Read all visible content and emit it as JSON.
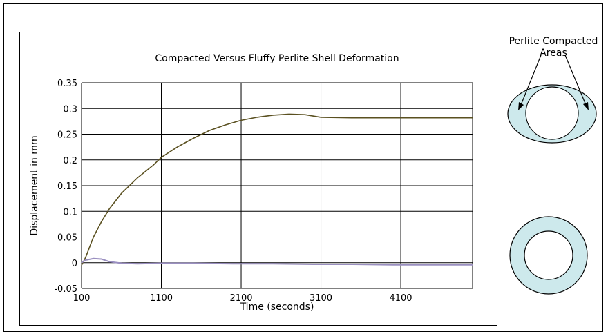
{
  "chart_data": {
    "type": "line",
    "title": "Compacted Versus Fluffy Perlite Shell Deformation",
    "xlabel": "Time (seconds)",
    "ylabel": "Displacement in mm",
    "xlim": [
      100,
      5000
    ],
    "ylim": [
      -0.05,
      0.35
    ],
    "x_ticks": [
      100,
      1100,
      2100,
      3100,
      4100
    ],
    "y_ticks": [
      -0.05,
      0,
      0.05,
      0.1,
      0.15,
      0.2,
      0.25,
      0.3,
      0.35
    ],
    "y_tick_labels": [
      "-0.05",
      "0",
      "0.05",
      "0.1",
      "0.15",
      "0.2",
      "0.25",
      "0.3",
      "0.35"
    ],
    "grid": true,
    "legend": "none",
    "series": [
      {
        "color": "#5a5020",
        "x": [
          100,
          150,
          250,
          350,
          450,
          600,
          800,
          1000,
          1100,
          1300,
          1500,
          1700,
          1900,
          2100,
          2300,
          2500,
          2700,
          2900,
          3100,
          3500,
          4000,
          4500,
          5000
        ],
        "y": [
          -0.005,
          0.01,
          0.05,
          0.08,
          0.105,
          0.135,
          0.165,
          0.19,
          0.205,
          0.225,
          0.242,
          0.257,
          0.268,
          0.277,
          0.283,
          0.287,
          0.289,
          0.288,
          0.283,
          0.282,
          0.282,
          0.282,
          0.282
        ]
      },
      {
        "color": "#9a8fc0",
        "x": [
          100,
          150,
          250,
          350,
          450,
          600,
          800,
          1100,
          1500,
          2000,
          2500,
          3000,
          3500,
          4000,
          4500,
          5000
        ],
        "y": [
          0.0,
          0.005,
          0.008,
          0.007,
          0.002,
          -0.001,
          -0.002,
          -0.001,
          -0.001,
          -0.002,
          -0.002,
          -0.003,
          -0.003,
          -0.004,
          -0.004,
          -0.004
        ]
      }
    ]
  },
  "diagram": {
    "annotation_label": "Perlite Compacted\nAreas",
    "ring_fill": "#cde9ec",
    "ring_stroke": "#000000"
  }
}
